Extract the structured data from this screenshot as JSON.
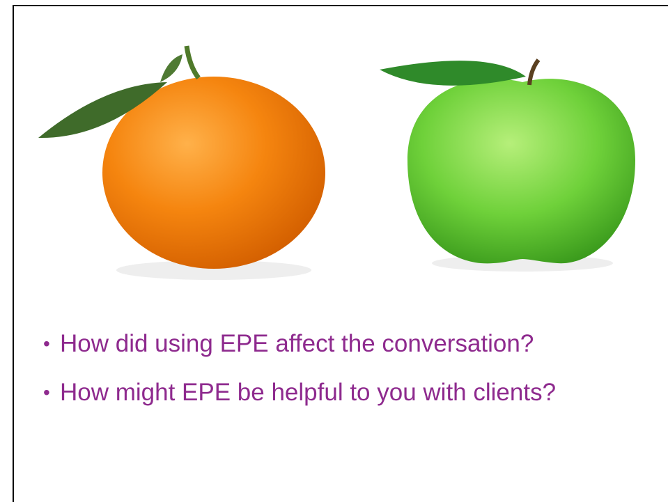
{
  "bullets": [
    "How did using EPE affect the conversation?",
    "How might EPE be helpful to you with clients?"
  ]
}
